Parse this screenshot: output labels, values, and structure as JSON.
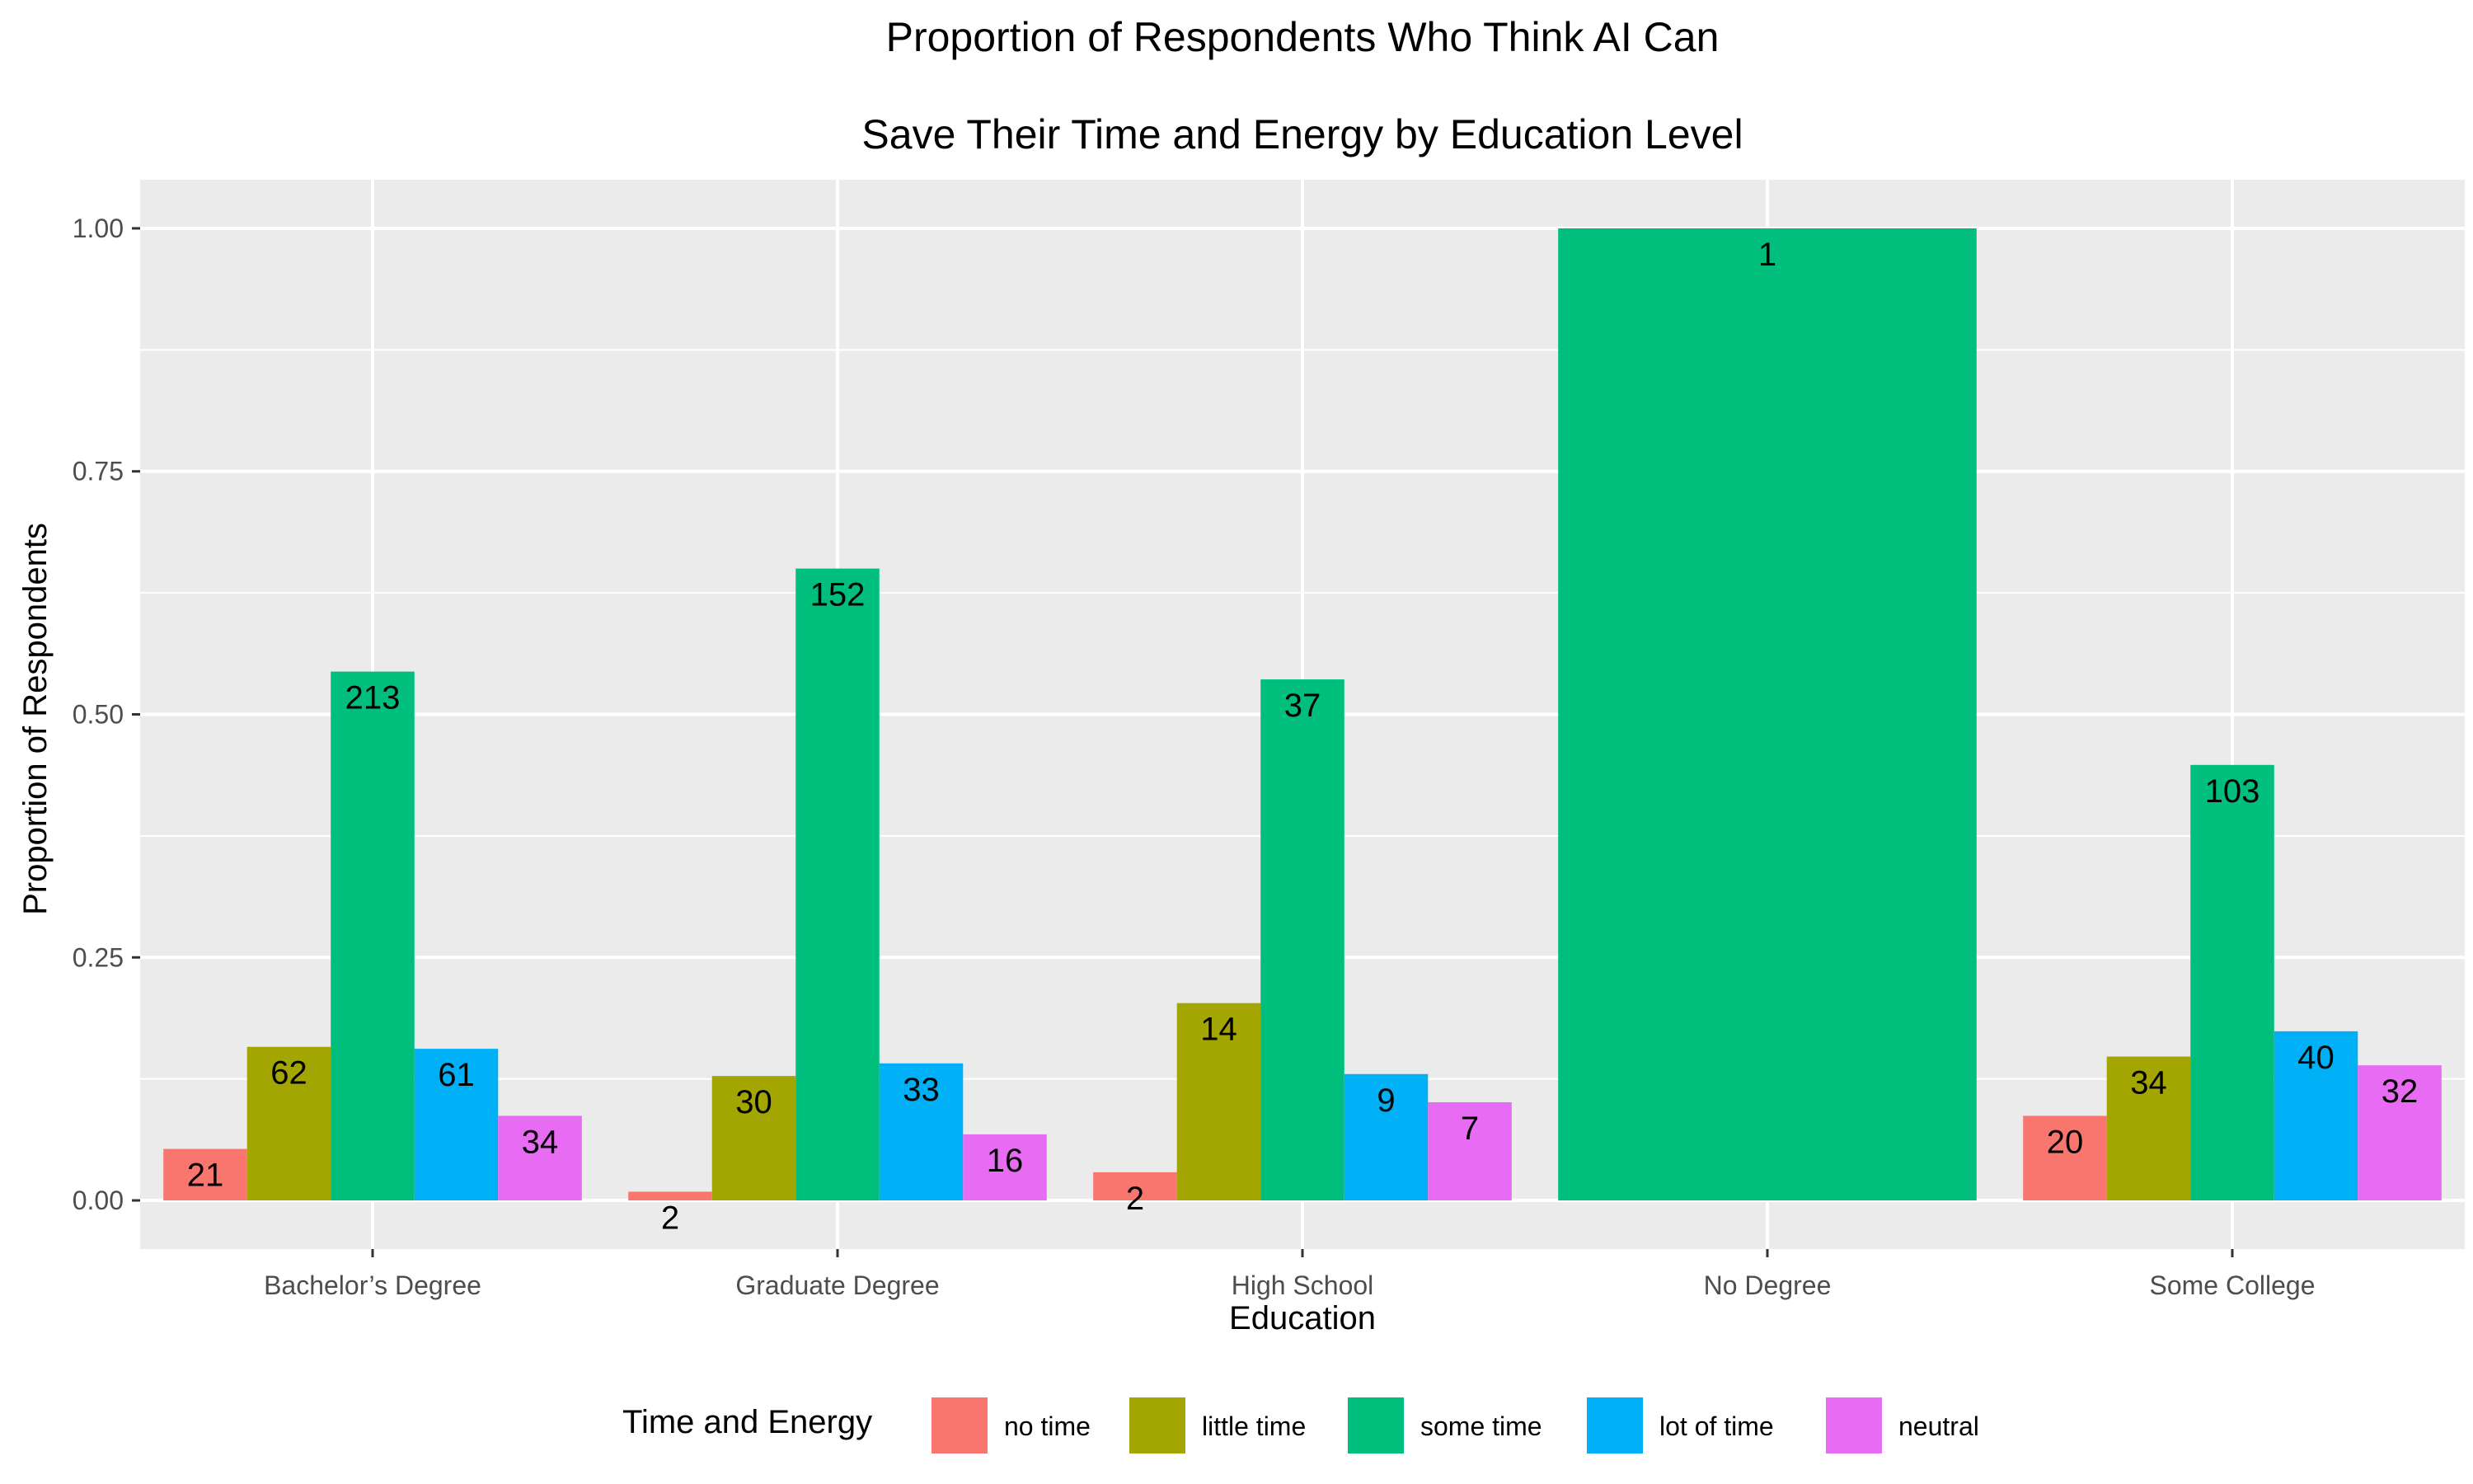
{
  "chart_data": {
    "type": "bar",
    "title_lines": [
      "Proportion of Respondents Who Think AI Can",
      "Save Their Time and Energy by Education Level"
    ],
    "xlabel": "Education",
    "ylabel": "Proportion of Respondents",
    "ylim": [
      -0.05,
      1.05
    ],
    "yticks": [
      0.0,
      0.25,
      0.5,
      0.75,
      1.0
    ],
    "ytick_labels": [
      "0.00",
      "0.25",
      "0.50",
      "0.75",
      "1.00"
    ],
    "categories": [
      "Bachelor’s Degree",
      "Graduate Degree",
      "High School",
      "No Degree",
      "Some College"
    ],
    "legend": {
      "title": "Time and Energy",
      "position": "bottom"
    },
    "grid": true,
    "series": [
      {
        "name": "no time",
        "color": "#F8766D",
        "values": [
          0.053,
          0.009,
          0.029,
          null,
          0.087
        ],
        "labels": [
          "21",
          "2",
          "2",
          null,
          "20"
        ]
      },
      {
        "name": "little time",
        "color": "#A3A500",
        "values": [
          0.158,
          0.128,
          0.203,
          null,
          0.148
        ],
        "labels": [
          "62",
          "30",
          "14",
          null,
          "34"
        ]
      },
      {
        "name": "some time",
        "color": "#00BF7D",
        "values": [
          0.544,
          0.65,
          0.536,
          1.0,
          0.448
        ],
        "labels": [
          "213",
          "152",
          "37",
          "1",
          "103"
        ]
      },
      {
        "name": "lot of time",
        "color": "#00B0F6",
        "values": [
          0.156,
          0.141,
          0.13,
          null,
          0.174
        ],
        "labels": [
          "61",
          "33",
          "9",
          null,
          "40"
        ]
      },
      {
        "name": "neutral",
        "color": "#E76BF3",
        "values": [
          0.087,
          0.068,
          0.101,
          null,
          0.139
        ],
        "labels": [
          "34",
          "16",
          "7",
          null,
          "32"
        ]
      }
    ]
  }
}
